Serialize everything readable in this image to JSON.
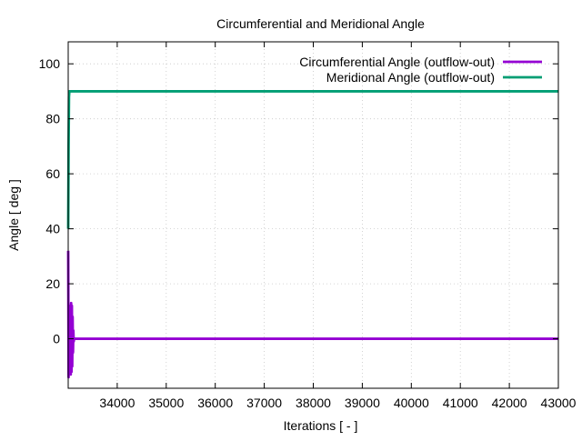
{
  "chart_data": {
    "type": "line",
    "title": "Circumferential and Meridional Angle",
    "xlabel": "Iterations [ - ]",
    "ylabel": "Angle [ deg ]",
    "xlim": [
      33000,
      43000
    ],
    "ylim": [
      -18,
      108
    ],
    "xticks": [
      34000,
      35000,
      36000,
      37000,
      38000,
      39000,
      40000,
      41000,
      42000,
      43000
    ],
    "yticks": [
      0,
      20,
      40,
      60,
      80,
      100
    ],
    "grid": true,
    "legend_position": "top-right",
    "series": [
      {
        "name": "Circumferential Angle (outflow-out)",
        "color": "#9400d3",
        "x": [
          33000,
          33008,
          33015,
          33022,
          33030,
          33038,
          33045,
          33052,
          33060,
          33068,
          33075,
          33082,
          33090,
          33098,
          33105,
          33112,
          33120,
          43000
        ],
        "y": [
          32,
          -14,
          12,
          -13,
          11,
          -12,
          12,
          -13,
          13,
          -12,
          12,
          -10,
          8,
          -5,
          3,
          -1,
          0,
          0
        ]
      },
      {
        "name": "Meridional Angle (outflow-out)",
        "color": "#009e73",
        "x": [
          33000,
          33008,
          33016,
          33024,
          33032,
          33040,
          43000
        ],
        "y": [
          40,
          70,
          88,
          90,
          90,
          90,
          90
        ]
      }
    ]
  }
}
